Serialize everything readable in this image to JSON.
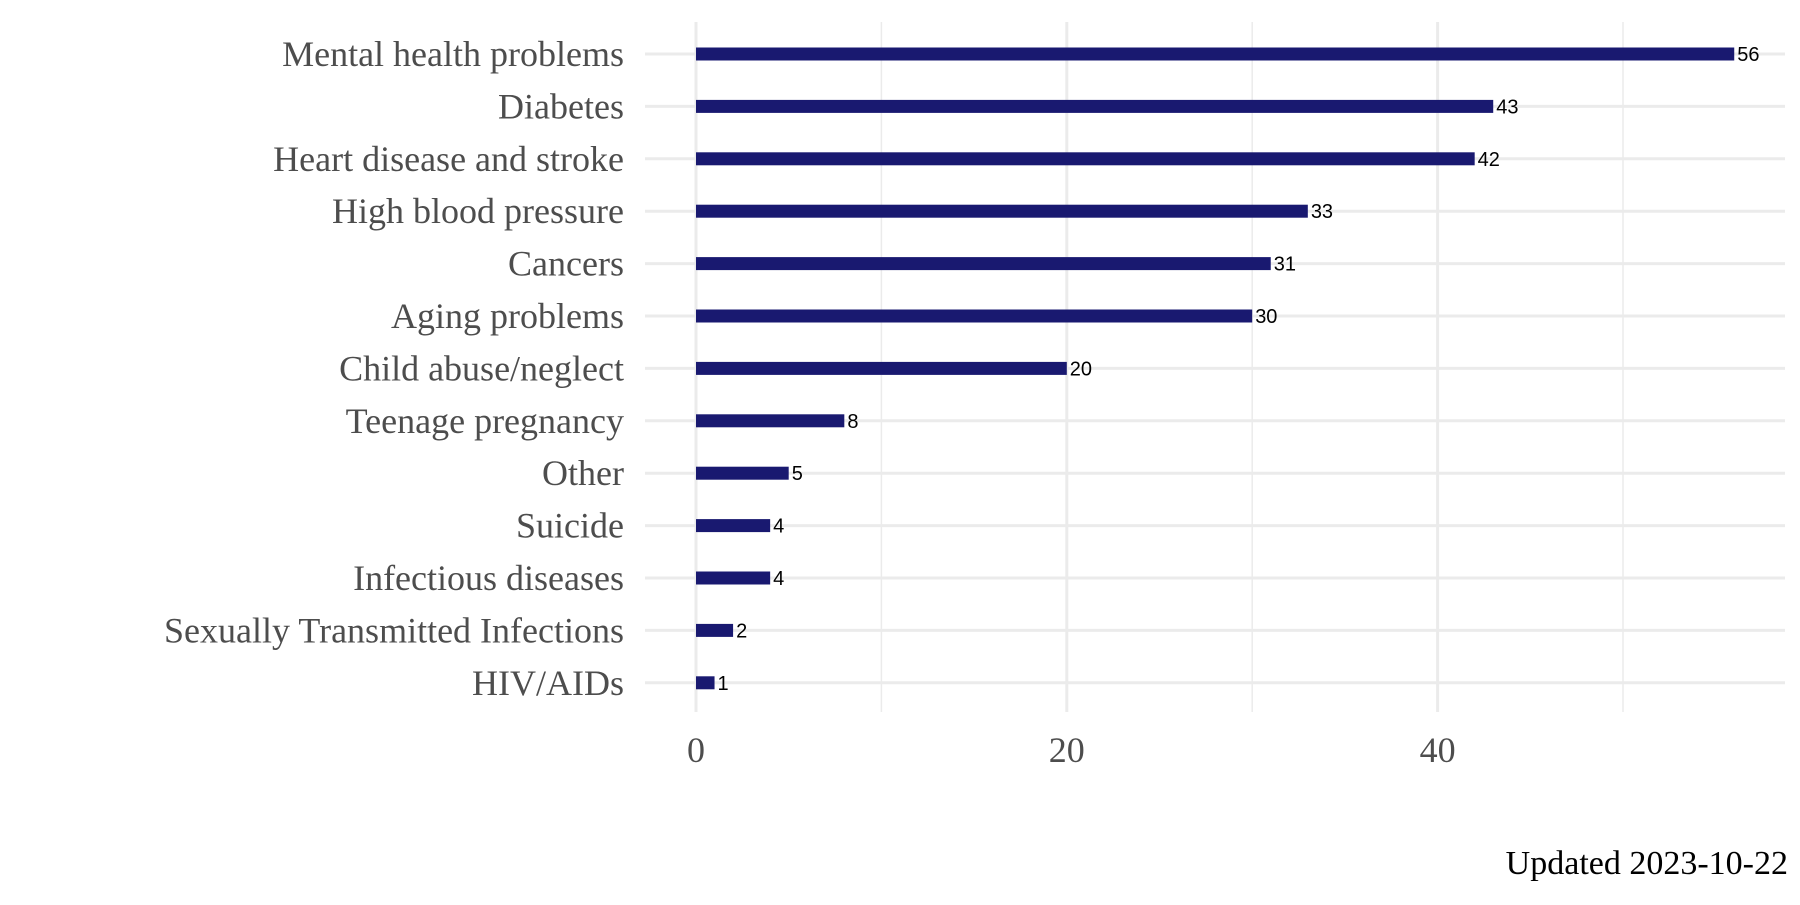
{
  "caption": "Updated 2023-10-22",
  "colors": {
    "bar": "#191970",
    "grid": "#ebebeb",
    "axis_text": "#4d4d4d"
  },
  "chart_data": {
    "type": "bar",
    "orientation": "horizontal",
    "categories": [
      "Mental health problems",
      "Diabetes",
      "Heart disease and stroke",
      "High blood pressure",
      "Cancers",
      "Aging problems",
      "Child abuse/neglect",
      "Teenage pregnancy",
      "Other",
      "Suicide",
      "Infectious diseases",
      "Sexually Transmitted Infections",
      "HIV/AIDs"
    ],
    "values": [
      56,
      43,
      42,
      33,
      31,
      30,
      20,
      8,
      5,
      4,
      4,
      2,
      1
    ],
    "data_labels": [
      "56",
      "43",
      "42",
      "33",
      "31",
      "30",
      "20",
      "8",
      "5",
      "4",
      "4",
      "2",
      "1"
    ],
    "x_ticks": [
      "0",
      "20",
      "40"
    ],
    "xlim": [
      0,
      58.5
    ],
    "title": "",
    "xlabel": "",
    "ylabel": "",
    "grid": true
  }
}
